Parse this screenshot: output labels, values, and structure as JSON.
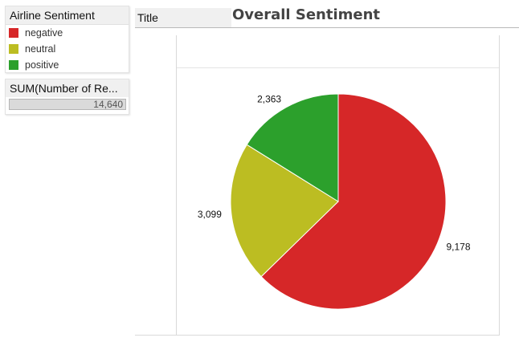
{
  "legend": {
    "title": "Airline Sentiment",
    "items": [
      {
        "label": "negative",
        "color": "#d62728"
      },
      {
        "label": "neutral",
        "color": "#bcbd22"
      },
      {
        "label": "positive",
        "color": "#2ca02c"
      }
    ]
  },
  "filter": {
    "title": "SUM(Number of Re...",
    "value": "14,640",
    "fill_fraction": 1.0
  },
  "header": {
    "tab_label": "Title",
    "chart_title": "Overall Sentiment"
  },
  "chart_data": {
    "type": "pie",
    "title": "Overall Sentiment",
    "start_angle_deg": 0,
    "direction": "clockwise",
    "slices": [
      {
        "label": "negative",
        "value": 9178,
        "display": "9,178",
        "color": "#d62728"
      },
      {
        "label": "neutral",
        "value": 3099,
        "display": "3,099",
        "color": "#bcbd22"
      },
      {
        "label": "positive",
        "value": 2363,
        "display": "2,363",
        "color": "#2ca02c"
      }
    ],
    "total": 14640,
    "legend_placement": "top-left"
  }
}
